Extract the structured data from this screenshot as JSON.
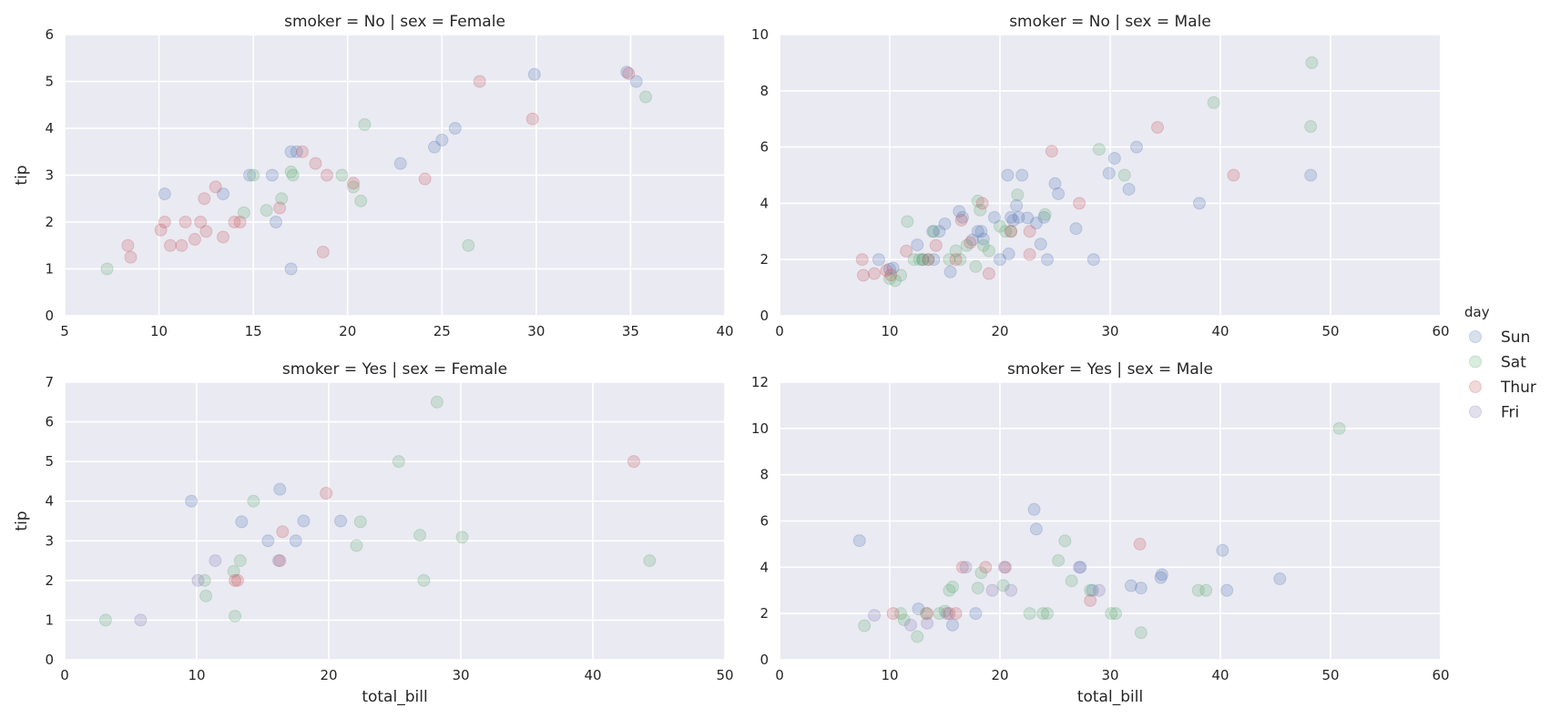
{
  "chart_data": {
    "type": "scatter",
    "legend": {
      "title": "day",
      "placement": "right",
      "entries": [
        {
          "name": "Sun",
          "color": "#4c72b0"
        },
        {
          "name": "Sat",
          "color": "#55a868"
        },
        {
          "name": "Thur",
          "color": "#c44e52"
        },
        {
          "name": "Fri",
          "color": "#8172b2"
        }
      ]
    },
    "grid": true,
    "panels": [
      {
        "title": "smoker = No | sex = Female",
        "xlabel": "",
        "ylabel": "tip",
        "xlim": [
          5,
          40
        ],
        "ylim": [
          0,
          6
        ],
        "xticks": [
          5,
          10,
          15,
          20,
          25,
          30,
          35,
          40
        ],
        "yticks": [
          0,
          1,
          2,
          3,
          4,
          5,
          6
        ],
        "series": [
          {
            "name": "Sun",
            "x": [
              10.3,
              13.4,
              14.8,
              16.0,
              16.2,
              17.0,
              17.3,
              22.8,
              24.6,
              25.0,
              25.7,
              29.9,
              34.8,
              35.3,
              17.0
            ],
            "y": [
              2.6,
              2.6,
              3.0,
              3.0,
              2.0,
              3.5,
              3.5,
              3.25,
              3.6,
              3.75,
              4.0,
              5.15,
              5.2,
              5.0,
              1.0
            ]
          },
          {
            "name": "Sat",
            "x": [
              7.25,
              14.5,
              15.0,
              15.7,
              16.5,
              17.0,
              17.1,
              19.7,
              20.3,
              20.7,
              20.9,
              26.4,
              35.8
            ],
            "y": [
              1.0,
              2.2,
              3.0,
              2.25,
              2.5,
              3.07,
              3.0,
              3.0,
              2.75,
              2.45,
              4.08,
              1.5,
              4.67
            ]
          },
          {
            "name": "Thur",
            "x": [
              8.35,
              8.5,
              10.1,
              10.3,
              10.6,
              11.2,
              11.4,
              11.9,
              12.2,
              12.4,
              12.5,
              13.0,
              13.4,
              14.0,
              14.3,
              16.4,
              17.6,
              18.3,
              18.7,
              18.9,
              20.3,
              24.1,
              27.0,
              29.8,
              34.9
            ],
            "y": [
              1.5,
              1.25,
              1.83,
              2.0,
              1.5,
              1.5,
              2.0,
              1.63,
              2.0,
              2.5,
              1.8,
              2.75,
              1.68,
              2.0,
              2.0,
              2.3,
              3.5,
              3.25,
              1.36,
              3.0,
              2.83,
              2.92,
              5.0,
              4.2,
              5.17
            ]
          },
          {
            "name": "Fri",
            "x": [],
            "y": []
          }
        ]
      },
      {
        "title": "smoker = No | sex = Male",
        "xlabel": "",
        "ylabel": "",
        "xlim": [
          0,
          60
        ],
        "ylim": [
          0,
          10
        ],
        "xticks": [
          0,
          10,
          20,
          30,
          40,
          50,
          60
        ],
        "yticks": [
          0,
          2,
          4,
          6,
          8,
          10
        ],
        "series": [
          {
            "name": "Sun",
            "x": [
              9.0,
              10.0,
              10.3,
              12.5,
              13.0,
              13.9,
              14.0,
              14.5,
              15.0,
              15.5,
              16.3,
              16.6,
              17.5,
              18.0,
              18.3,
              19.5,
              20.0,
              20.7,
              20.8,
              21.0,
              21.5,
              21.7,
              22.0,
              22.5,
              23.3,
              23.7,
              24.0,
              24.3,
              25.0,
              25.3,
              26.9,
              28.5,
              29.9,
              30.4,
              31.7,
              32.4,
              38.1,
              48.2,
              18.5,
              21.2
            ],
            "y": [
              2.0,
              1.66,
              1.7,
              2.52,
              2.0,
              3.0,
              2.0,
              3.0,
              3.27,
              1.56,
              3.71,
              3.5,
              2.7,
              3.0,
              3.0,
              3.5,
              2.0,
              5.0,
              2.2,
              3.5,
              3.92,
              3.5,
              5.0,
              3.48,
              3.3,
              2.55,
              3.5,
              2.0,
              4.7,
              4.34,
              3.1,
              2.0,
              5.07,
              5.6,
              4.5,
              6.0,
              4.0,
              5.0,
              2.73,
              3.39
            ]
          },
          {
            "name": "Sat",
            "x": [
              10.0,
              10.5,
              11.0,
              11.6,
              12.2,
              12.7,
              13.0,
              13.5,
              14.0,
              15.4,
              16.0,
              16.4,
              17.0,
              17.8,
              18.0,
              18.2,
              18.5,
              19.0,
              20.0,
              20.5,
              21.0,
              21.6,
              24.1,
              29.0,
              31.3,
              39.4,
              48.3,
              48.2
            ],
            "y": [
              1.32,
              1.25,
              1.44,
              3.35,
              2.0,
              2.0,
              2.0,
              2.0,
              3.0,
              2.0,
              2.31,
              2.0,
              2.5,
              1.75,
              4.08,
              3.76,
              2.5,
              2.31,
              3.18,
              3.0,
              3.0,
              4.3,
              3.6,
              5.92,
              5.0,
              7.58,
              9.0,
              6.73
            ]
          },
          {
            "name": "Thur",
            "x": [
              7.5,
              7.6,
              8.6,
              9.7,
              10.1,
              11.5,
              13.5,
              14.2,
              16.0,
              16.5,
              17.3,
              18.4,
              19.0,
              21.0,
              22.7,
              24.7,
              27.2,
              34.3,
              41.2,
              22.7
            ],
            "y": [
              2.0,
              1.44,
              1.5,
              1.61,
              1.45,
              2.3,
              2.0,
              2.5,
              2.0,
              3.4,
              2.6,
              4.0,
              1.5,
              3.0,
              2.18,
              5.85,
              4.0,
              6.7,
              5.0,
              3.0
            ]
          },
          {
            "name": "Fri",
            "x": [],
            "y": []
          }
        ]
      },
      {
        "title": "smoker = Yes | sex = Female",
        "xlabel": "total_bill",
        "ylabel": "tip",
        "xlim": [
          0,
          50
        ],
        "ylim": [
          0,
          7
        ],
        "xticks": [
          0,
          10,
          20,
          30,
          40,
          50
        ],
        "yticks": [
          0,
          1,
          2,
          3,
          4,
          5,
          6,
          7
        ],
        "series": [
          {
            "name": "Sun",
            "x": [
              9.6,
              13.4,
              15.4,
              16.3,
              17.5,
              18.1,
              20.9
            ],
            "y": [
              4.0,
              3.48,
              3.0,
              4.3,
              3.0,
              3.5,
              3.5
            ]
          },
          {
            "name": "Sat",
            "x": [
              3.1,
              10.6,
              10.7,
              12.8,
              12.9,
              13.3,
              14.3,
              22.1,
              22.4,
              25.3,
              26.9,
              27.2,
              28.2,
              30.1,
              44.3
            ],
            "y": [
              1.0,
              2.0,
              1.61,
              2.23,
              1.1,
              2.5,
              4.0,
              2.88,
              3.48,
              5.0,
              3.14,
              2.0,
              6.5,
              3.09,
              2.5
            ]
          },
          {
            "name": "Thur",
            "x": [
              12.9,
              13.1,
              16.3,
              16.5,
              19.8,
              43.1
            ],
            "y": [
              2.0,
              2.0,
              2.5,
              3.23,
              4.2,
              5.0
            ]
          },
          {
            "name": "Fri",
            "x": [
              5.75,
              10.1,
              11.4,
              16.2
            ],
            "y": [
              1.0,
              2.0,
              2.5,
              2.5
            ]
          }
        ]
      },
      {
        "title": "smoker = Yes | sex = Male",
        "xlabel": "total_bill",
        "ylabel": "",
        "xlim": [
          0,
          60
        ],
        "ylim": [
          0,
          12
        ],
        "xticks": [
          0,
          10,
          20,
          30,
          40,
          50,
          60
        ],
        "yticks": [
          0,
          2,
          4,
          6,
          8,
          10,
          12
        ],
        "series": [
          {
            "name": "Sun",
            "x": [
              7.25,
              12.6,
              15.7,
              17.8,
              23.1,
              23.3,
              27.3,
              28.4,
              31.9,
              32.8,
              34.6,
              34.7,
              40.2,
              40.6,
              45.4
            ],
            "y": [
              5.15,
              2.2,
              1.5,
              2.0,
              6.5,
              5.65,
              4.0,
              3.0,
              3.2,
              3.1,
              3.55,
              3.68,
              4.73,
              3.0,
              3.5
            ]
          },
          {
            "name": "Sat",
            "x": [
              7.7,
              11.0,
              11.3,
              12.5,
              13.3,
              14.5,
              15.0,
              15.4,
              15.7,
              18.0,
              18.3,
              20.3,
              22.7,
              23.9,
              24.3,
              25.3,
              25.9,
              26.5,
              28.2,
              30.1,
              30.5,
              32.8,
              38.0,
              38.7,
              50.8
            ],
            "y": [
              1.47,
              2.0,
              1.73,
              1.0,
              2.0,
              2.0,
              2.1,
              3.0,
              3.15,
              3.1,
              3.76,
              3.21,
              2.0,
              2.0,
              2.0,
              4.29,
              5.14,
              3.41,
              3.0,
              2.0,
              2.0,
              1.17,
              3.0,
              3.0,
              10.0
            ]
          },
          {
            "name": "Thur",
            "x": [
              10.3,
              13.4,
              15.4,
              16.0,
              16.6,
              18.7,
              20.5,
              28.2,
              32.7
            ],
            "y": [
              2.0,
              2.0,
              2.0,
              2.0,
              4.0,
              4.0,
              4.0,
              2.56,
              5.0
            ]
          },
          {
            "name": "Fri",
            "x": [
              8.6,
              11.9,
              13.4,
              15.2,
              16.9,
              19.3,
              20.4,
              21.0,
              27.2,
              29.0
            ],
            "y": [
              1.92,
              1.5,
              1.58,
              2.0,
              4.0,
              3.0,
              4.0,
              3.0,
              4.0,
              3.0
            ]
          }
        ]
      }
    ]
  }
}
